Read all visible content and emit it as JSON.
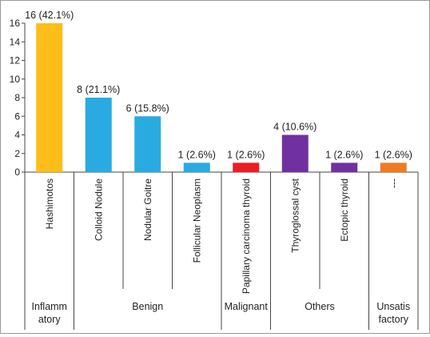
{
  "chart_data": {
    "type": "bar",
    "title": "",
    "xlabel": "",
    "ylabel": "",
    "ylim": [
      0,
      16
    ],
    "yticks": [
      0,
      2,
      4,
      6,
      8,
      10,
      12,
      14,
      16
    ],
    "grid": false,
    "legend": "none",
    "categories": [
      "Hashimotos",
      "Colloid Nodule",
      "Nodular Goitre",
      "Follicular Neoplasm",
      "Papillary carcinoma thyroid",
      "Thyroglossal cyst",
      "Ectopic thyroid",
      "---"
    ],
    "values": [
      16,
      8,
      6,
      1,
      1,
      4,
      1,
      1
    ],
    "data_labels": [
      "16 (42.1%)",
      "8 (21.1%)",
      "6 (15.8%)",
      "1 (2.6%)",
      "1 (2.6%)",
      "4 (10.6%)",
      "1 (2.6%)",
      "1 (2.6%)"
    ],
    "bar_colors": [
      "#fdbe19",
      "#29abe2",
      "#29abe2",
      "#29abe2",
      "#ec1c24",
      "#7030a0",
      "#7030a0",
      "#f07a22"
    ],
    "groups": [
      {
        "lines": [
          "Inflamm",
          "atory"
        ],
        "start": 0,
        "end": 0
      },
      {
        "lines": [
          "Benign"
        ],
        "start": 1,
        "end": 3
      },
      {
        "lines": [
          "Malignant"
        ],
        "start": 4,
        "end": 4
      },
      {
        "lines": [
          "Others"
        ],
        "start": 5,
        "end": 6
      },
      {
        "lines": [
          "Unsatis",
          "factory"
        ],
        "start": 7,
        "end": 7
      }
    ]
  }
}
